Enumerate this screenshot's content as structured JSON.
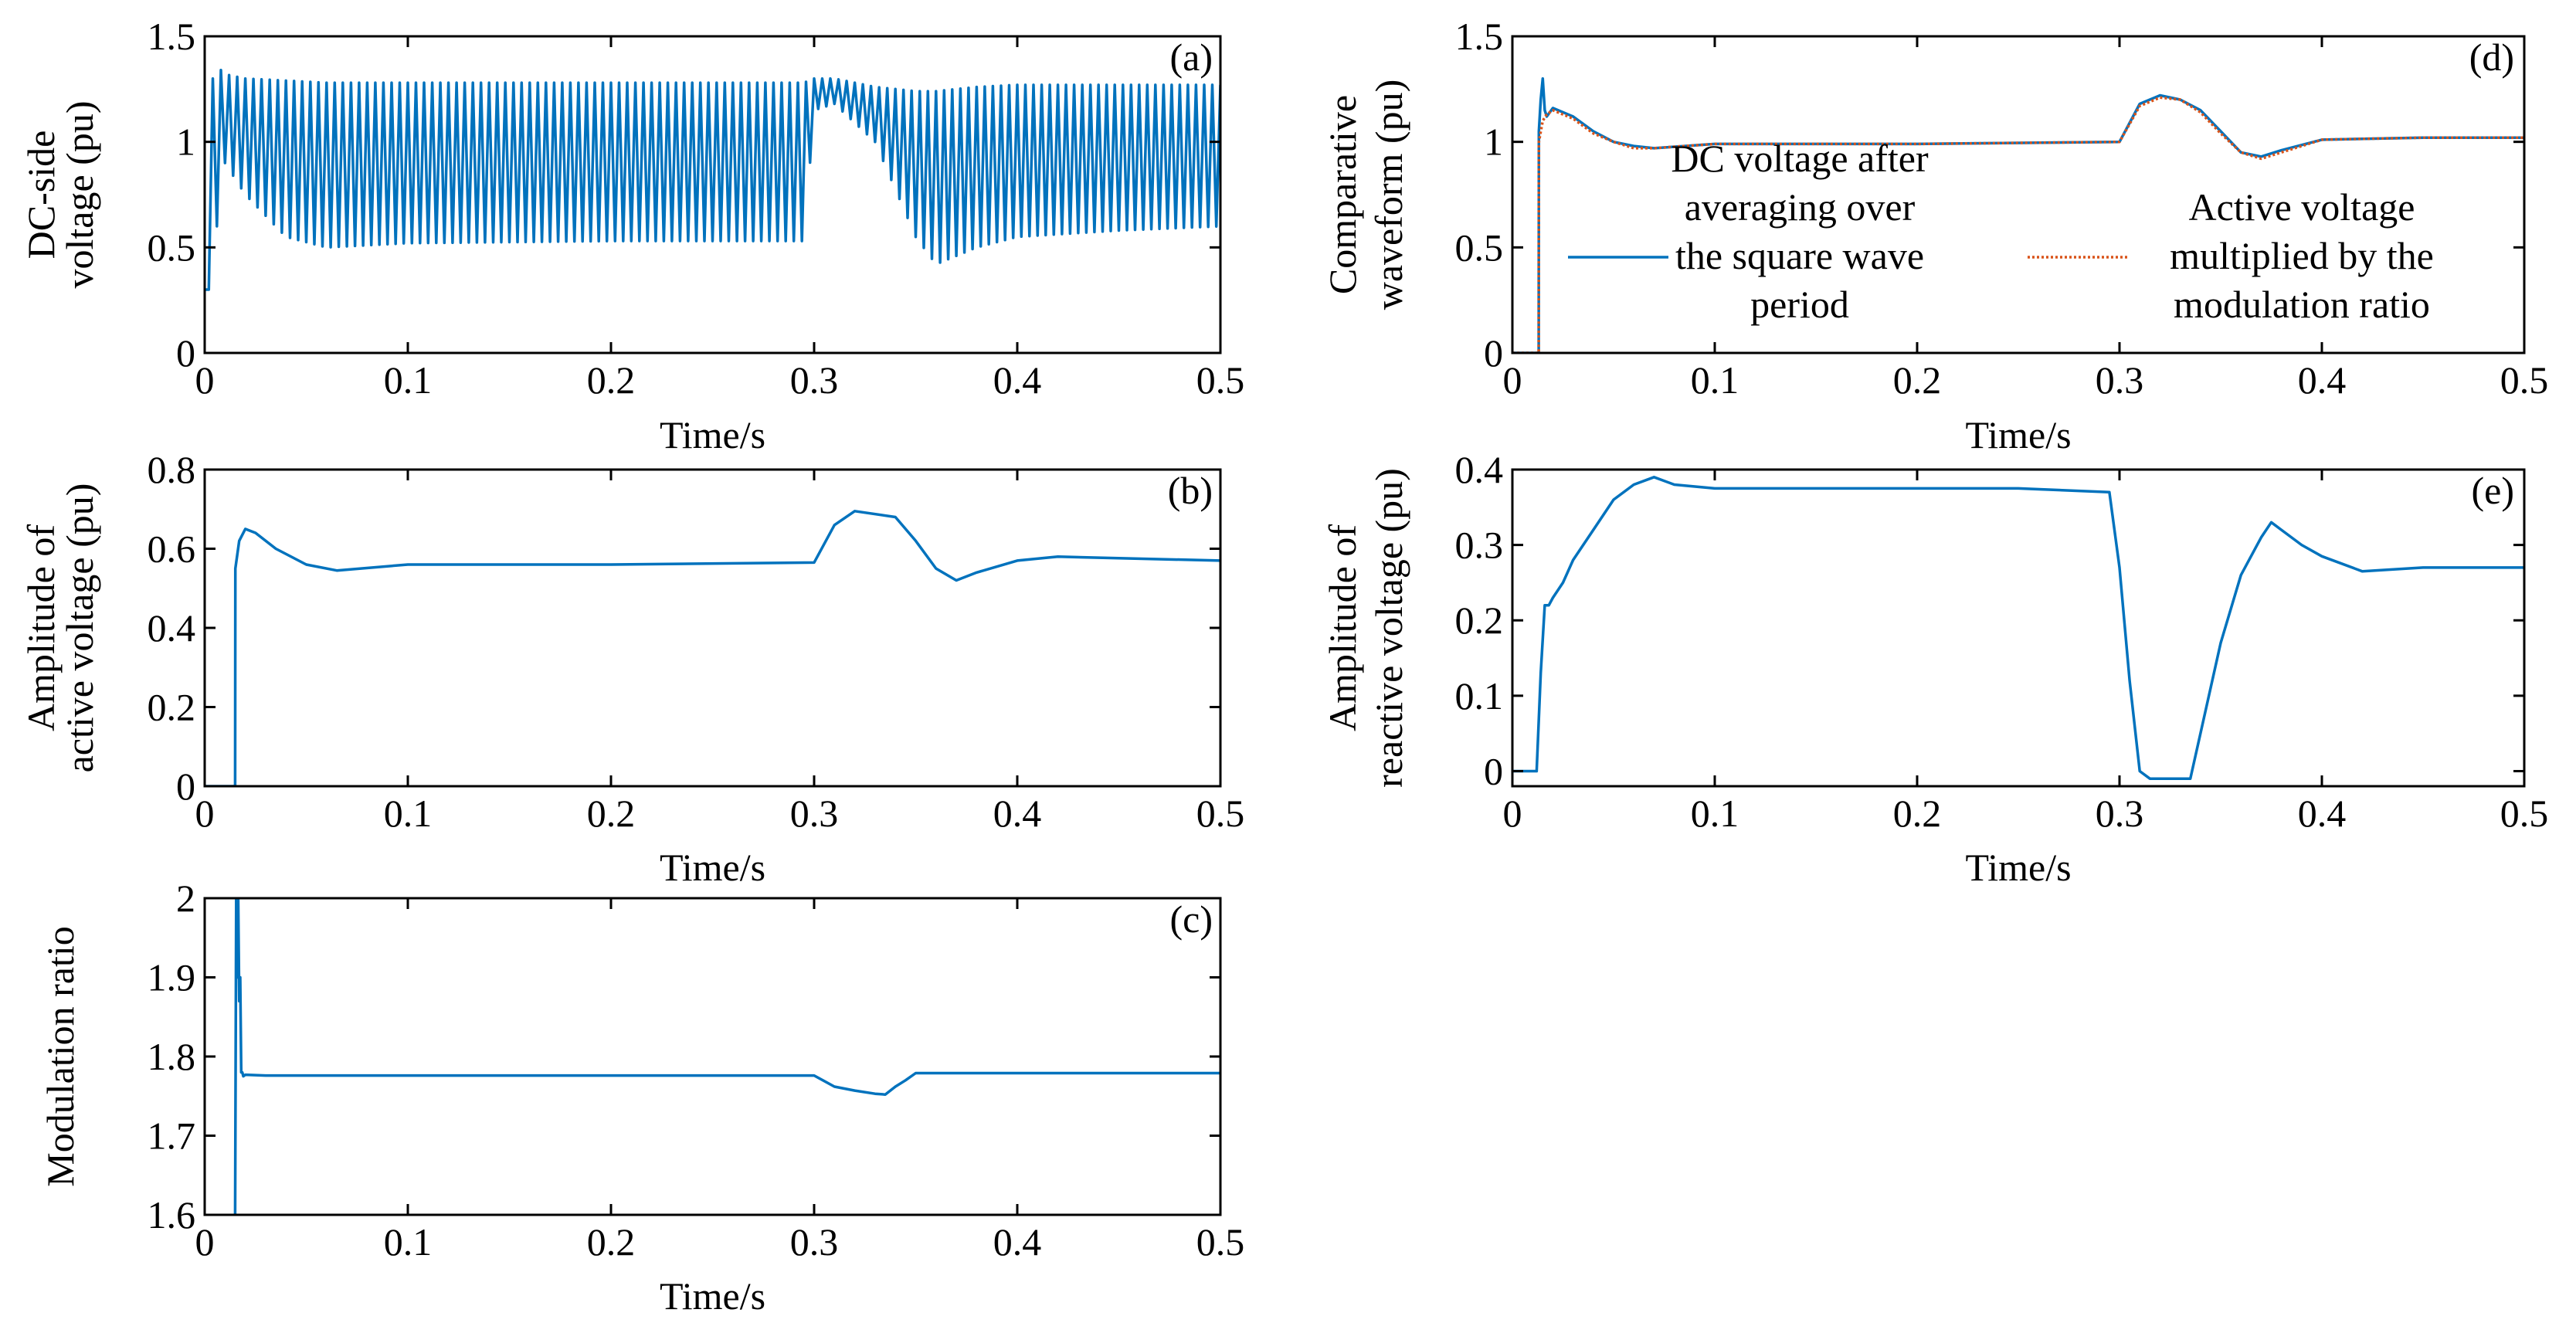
{
  "colors": {
    "series_blue": "#0072BD",
    "series_red": "#D95319",
    "axis": "#000000"
  },
  "chart_data": [
    {
      "id": "a",
      "type": "line",
      "panel_label": "(a)",
      "title": "",
      "xlabel": "Time/s",
      "ylabel": [
        "DC-side",
        "voltage (pu)"
      ],
      "xlim": [
        0,
        0.5
      ],
      "ylim": [
        0,
        1.5
      ],
      "xticks": [
        0,
        0.1,
        0.2,
        0.3,
        0.4,
        0.5
      ],
      "xtick_labels": [
        "0",
        "0.1",
        "0.2",
        "0.3",
        "0.4",
        "0.5"
      ],
      "yticks": [
        0,
        0.5,
        1,
        1.5
      ],
      "ytick_labels": [
        "0",
        "0.5",
        "1",
        "1.5"
      ],
      "series": [
        {
          "name": "DC-side voltage",
          "color": "#0072BD",
          "style": "solid",
          "oscillating": true,
          "x": [
            0,
            0.002,
            0.004,
            0.006,
            0.01,
            0.02,
            0.04,
            0.06,
            0.1,
            0.2,
            0.295,
            0.3,
            0.31,
            0.33,
            0.35,
            0.36,
            0.38,
            0.4,
            0.45,
            0.5
          ],
          "upper": [
            0.3,
            0.8,
            1.3,
            1.36,
            1.32,
            1.3,
            1.29,
            1.28,
            1.28,
            1.28,
            1.28,
            1.3,
            1.3,
            1.26,
            1.24,
            1.24,
            1.26,
            1.27,
            1.27,
            1.27
          ],
          "lower": [
            0.2,
            0.3,
            0.2,
            0.6,
            0.9,
            0.75,
            0.55,
            0.5,
            0.52,
            0.53,
            0.53,
            1.15,
            1.18,
            1.0,
            0.55,
            0.42,
            0.5,
            0.55,
            0.58,
            0.6
          ],
          "cycle": 0.004
        }
      ]
    },
    {
      "id": "b",
      "type": "line",
      "panel_label": "(b)",
      "title": "",
      "xlabel": "Time/s",
      "ylabel": [
        "Amplitude of",
        "active voltage (pu)"
      ],
      "xlim": [
        0,
        0.5
      ],
      "ylim": [
        0,
        0.8
      ],
      "xticks": [
        0,
        0.1,
        0.2,
        0.3,
        0.4,
        0.5
      ],
      "xtick_labels": [
        "0",
        "0.1",
        "0.2",
        "0.3",
        "0.4",
        "0.5"
      ],
      "yticks": [
        0,
        0.2,
        0.4,
        0.6,
        0.8
      ],
      "ytick_labels": [
        "0",
        "0.2",
        "0.4",
        "0.6",
        "0.8"
      ],
      "series": [
        {
          "name": "Amplitude of active voltage",
          "color": "#0072BD",
          "style": "solid",
          "x": [
            0,
            0.015,
            0.0151,
            0.017,
            0.02,
            0.025,
            0.035,
            0.05,
            0.065,
            0.1,
            0.2,
            0.3,
            0.31,
            0.32,
            0.34,
            0.35,
            0.36,
            0.37,
            0.38,
            0.4,
            0.42,
            0.5
          ],
          "y": [
            0,
            0,
            0.55,
            0.62,
            0.65,
            0.64,
            0.6,
            0.56,
            0.545,
            0.56,
            0.56,
            0.565,
            0.66,
            0.695,
            0.68,
            0.62,
            0.55,
            0.52,
            0.54,
            0.57,
            0.58,
            0.57
          ]
        }
      ]
    },
    {
      "id": "c",
      "type": "line",
      "panel_label": "(c)",
      "title": "",
      "xlabel": "Time/s",
      "ylabel": [
        "Modulation ratio"
      ],
      "xlim": [
        0,
        0.5
      ],
      "ylim": [
        1.6,
        2
      ],
      "xticks": [
        0,
        0.1,
        0.2,
        0.3,
        0.4,
        0.5
      ],
      "xtick_labels": [
        "0",
        "0.1",
        "0.2",
        "0.3",
        "0.4",
        "0.5"
      ],
      "yticks": [
        1.6,
        1.7,
        1.8,
        1.9,
        2
      ],
      "ytick_labels": [
        "1.6",
        "1.7",
        "1.8",
        "1.9",
        "2"
      ],
      "series": [
        {
          "name": "Modulation ratio",
          "color": "#0072BD",
          "style": "solid",
          "x": [
            0.015,
            0.0155,
            0.016,
            0.0165,
            0.017,
            0.0175,
            0.018,
            0.0185,
            0.019,
            0.02,
            0.03,
            0.1,
            0.2,
            0.3,
            0.31,
            0.32,
            0.33,
            0.335,
            0.34,
            0.345,
            0.35,
            0.4,
            0.5
          ],
          "y": [
            1.6,
            2.0,
            1.9,
            2.0,
            1.87,
            1.9,
            1.78,
            1.78,
            1.775,
            1.777,
            1.776,
            1.776,
            1.776,
            1.776,
            1.762,
            1.757,
            1.753,
            1.752,
            1.762,
            1.77,
            1.779,
            1.779,
            1.779
          ]
        }
      ]
    },
    {
      "id": "d",
      "type": "line",
      "panel_label": "(d)",
      "title": "",
      "xlabel": "Time/s",
      "ylabel": [
        "Comparative",
        "waveform (pu)"
      ],
      "xlim": [
        0,
        0.5
      ],
      "ylim": [
        0,
        1.5
      ],
      "xticks": [
        0,
        0.1,
        0.2,
        0.3,
        0.4,
        0.5
      ],
      "xtick_labels": [
        "0",
        "0.1",
        "0.2",
        "0.3",
        "0.4",
        "0.5"
      ],
      "yticks": [
        0,
        0.5,
        1,
        1.5
      ],
      "ytick_labels": [
        "0",
        "0.5",
        "1",
        "1.5"
      ],
      "legend": [
        {
          "lines": [
            "DC voltage after",
            "averaging over",
            "the square wave",
            "period"
          ],
          "color": "#0072BD",
          "style": "solid"
        },
        {
          "lines": [
            "Active voltage",
            "multiplied by the",
            "modulation ratio"
          ],
          "color": "#D95319",
          "style": "dotted"
        }
      ],
      "series": [
        {
          "name": "DC voltage after averaging over the square wave period",
          "color": "#0072BD",
          "style": "solid",
          "x": [
            0,
            0.013,
            0.0131,
            0.014,
            0.015,
            0.016,
            0.017,
            0.02,
            0.03,
            0.04,
            0.05,
            0.06,
            0.07,
            0.1,
            0.2,
            0.3,
            0.31,
            0.32,
            0.33,
            0.34,
            0.35,
            0.36,
            0.37,
            0.38,
            0.4,
            0.45,
            0.5
          ],
          "y": [
            0,
            0,
            1.05,
            1.2,
            1.3,
            1.15,
            1.12,
            1.16,
            1.12,
            1.05,
            1.0,
            0.98,
            0.97,
            0.99,
            0.99,
            1.0,
            1.18,
            1.22,
            1.2,
            1.15,
            1.05,
            0.95,
            0.93,
            0.96,
            1.01,
            1.02,
            1.02
          ]
        },
        {
          "name": "Active voltage multiplied by the modulation ratio",
          "color": "#D95319",
          "style": "dotted",
          "x": [
            0,
            0.013,
            0.0131,
            0.015,
            0.017,
            0.02,
            0.03,
            0.04,
            0.05,
            0.06,
            0.07,
            0.1,
            0.2,
            0.3,
            0.31,
            0.32,
            0.33,
            0.34,
            0.35,
            0.36,
            0.37,
            0.38,
            0.4,
            0.45,
            0.5
          ],
          "y": [
            0,
            0,
            1.0,
            1.1,
            1.13,
            1.15,
            1.11,
            1.04,
            1.0,
            0.97,
            0.97,
            0.99,
            0.99,
            1.0,
            1.17,
            1.21,
            1.2,
            1.14,
            1.04,
            0.95,
            0.92,
            0.95,
            1.01,
            1.02,
            1.02
          ]
        }
      ]
    },
    {
      "id": "e",
      "type": "line",
      "panel_label": "(e)",
      "title": "",
      "xlabel": "Time/s",
      "ylabel": [
        "Amplitude of",
        "reactive voltage (pu)"
      ],
      "xlim": [
        0,
        0.5
      ],
      "ylim": [
        -0.02,
        0.4
      ],
      "xticks": [
        0,
        0.1,
        0.2,
        0.3,
        0.4,
        0.5
      ],
      "xtick_labels": [
        "0",
        "0.1",
        "0.2",
        "0.3",
        "0.4",
        "0.5"
      ],
      "yticks": [
        0,
        0.1,
        0.2,
        0.3,
        0.4
      ],
      "ytick_labels": [
        "0",
        "0.1",
        "0.2",
        "0.3",
        "0.4"
      ],
      "series": [
        {
          "name": "Amplitude of reactive voltage",
          "color": "#0072BD",
          "style": "solid",
          "x": [
            0,
            0.012,
            0.014,
            0.016,
            0.018,
            0.02,
            0.025,
            0.03,
            0.04,
            0.05,
            0.06,
            0.07,
            0.08,
            0.1,
            0.15,
            0.2,
            0.25,
            0.295,
            0.3,
            0.305,
            0.31,
            0.315,
            0.32,
            0.33,
            0.335,
            0.34,
            0.35,
            0.36,
            0.37,
            0.375,
            0.38,
            0.39,
            0.4,
            0.42,
            0.45,
            0.5
          ],
          "y": [
            0.0,
            0.0,
            0.13,
            0.22,
            0.22,
            0.23,
            0.25,
            0.28,
            0.32,
            0.36,
            0.38,
            0.39,
            0.38,
            0.375,
            0.375,
            0.375,
            0.375,
            0.37,
            0.27,
            0.12,
            0.0,
            -0.01,
            -0.01,
            -0.01,
            -0.01,
            0.05,
            0.17,
            0.26,
            0.31,
            0.33,
            0.32,
            0.3,
            0.285,
            0.265,
            0.27,
            0.27
          ]
        }
      ]
    }
  ]
}
